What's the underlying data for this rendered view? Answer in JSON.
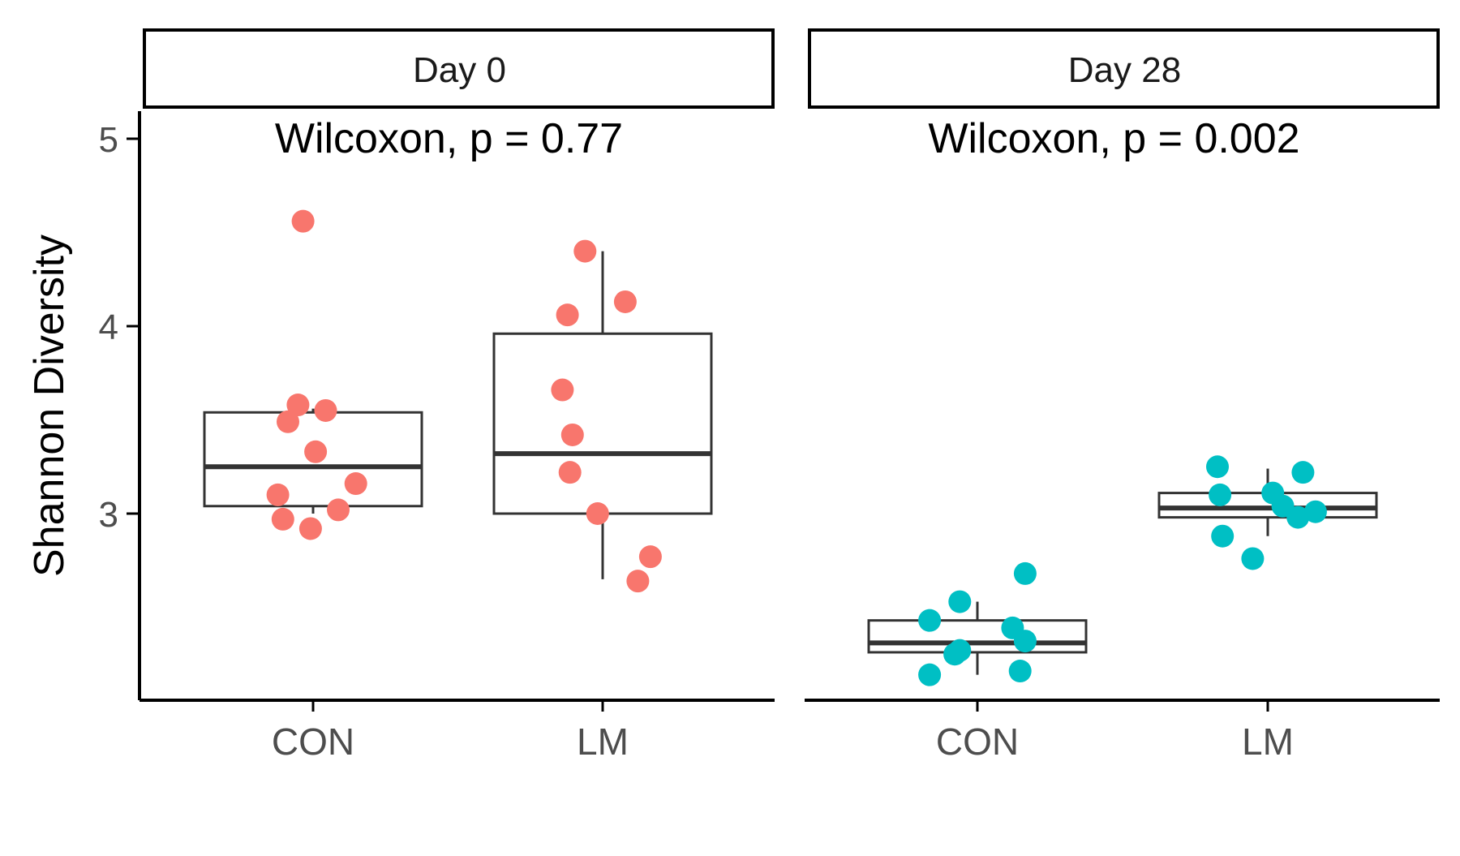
{
  "colors": {
    "day0_points": "#F8766D",
    "day28_points": "#00BFC4",
    "box_stroke": "#333333",
    "axis": "#000000",
    "tick_text": "#4D4D4D"
  },
  "chart_data": {
    "type": "boxplot",
    "ylabel": "Shannon Diversity",
    "xlabel": "",
    "y_ticks": [
      "3",
      "4",
      "5"
    ],
    "categories": [
      "CON",
      "LM"
    ],
    "legend": "none",
    "grid": false,
    "panels": [
      {
        "strip_label": "Day 0",
        "annotation": "Wilcoxon, p = 0.77",
        "point_color": "#F8766D",
        "groups": [
          {
            "category": "CON",
            "box": {
              "q1": 3.04,
              "median": 3.25,
              "q3": 3.54,
              "whisker_low": 3.0,
              "whisker_high": 3.56
            },
            "points": [
              {
                "dx": -0.04,
                "y": 4.56
              },
              {
                "dx": -0.06,
                "y": 3.58
              },
              {
                "dx": -0.1,
                "y": 3.49
              },
              {
                "dx": 0.05,
                "y": 3.55
              },
              {
                "dx": 0.01,
                "y": 3.33
              },
              {
                "dx": 0.17,
                "y": 3.16
              },
              {
                "dx": -0.14,
                "y": 3.1
              },
              {
                "dx": 0.1,
                "y": 3.02
              },
              {
                "dx": -0.12,
                "y": 2.97
              },
              {
                "dx": -0.01,
                "y": 2.92
              }
            ]
          },
          {
            "category": "LM",
            "box": {
              "q1": 3.0,
              "median": 3.32,
              "q3": 3.96,
              "whisker_low": 2.65,
              "whisker_high": 4.4
            },
            "points": [
              {
                "dx": -0.07,
                "y": 4.4
              },
              {
                "dx": 0.09,
                "y": 4.13
              },
              {
                "dx": -0.14,
                "y": 4.06
              },
              {
                "dx": -0.16,
                "y": 3.66
              },
              {
                "dx": -0.12,
                "y": 3.42
              },
              {
                "dx": -0.13,
                "y": 3.22
              },
              {
                "dx": -0.02,
                "y": 3.0
              },
              {
                "dx": 0.19,
                "y": 2.77
              },
              {
                "dx": 0.14,
                "y": 2.64
              }
            ]
          }
        ]
      },
      {
        "strip_label": "Day 28",
        "annotation": "Wilcoxon, p = 0.002",
        "point_color": "#00BFC4",
        "groups": [
          {
            "category": "CON",
            "box": {
              "q1": 2.26,
              "median": 2.31,
              "q3": 2.43,
              "whisker_low": 2.14,
              "whisker_high": 2.53
            },
            "points": [
              {
                "dx": 0.19,
                "y": 2.68
              },
              {
                "dx": -0.07,
                "y": 2.53
              },
              {
                "dx": -0.19,
                "y": 2.43
              },
              {
                "dx": 0.14,
                "y": 2.39
              },
              {
                "dx": 0.19,
                "y": 2.32
              },
              {
                "dx": -0.07,
                "y": 2.27
              },
              {
                "dx": -0.09,
                "y": 2.25
              },
              {
                "dx": 0.17,
                "y": 2.16
              },
              {
                "dx": -0.19,
                "y": 2.14
              }
            ]
          },
          {
            "category": "LM",
            "box": {
              "q1": 2.98,
              "median": 3.03,
              "q3": 3.11,
              "whisker_low": 2.88,
              "whisker_high": 3.24
            },
            "points": [
              {
                "dx": -0.2,
                "y": 3.25
              },
              {
                "dx": 0.14,
                "y": 3.22
              },
              {
                "dx": -0.19,
                "y": 3.1
              },
              {
                "dx": 0.02,
                "y": 3.11
              },
              {
                "dx": 0.06,
                "y": 3.04
              },
              {
                "dx": 0.19,
                "y": 3.01
              },
              {
                "dx": 0.12,
                "y": 2.98
              },
              {
                "dx": -0.18,
                "y": 2.88
              },
              {
                "dx": -0.06,
                "y": 2.76
              }
            ]
          }
        ]
      }
    ]
  }
}
